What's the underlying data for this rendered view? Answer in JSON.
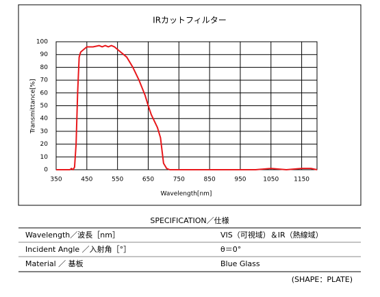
{
  "chart_data": {
    "type": "line",
    "title": "IRカットフィルター",
    "x_label": "Wavelength[nm]",
    "y_label": "Transmittance[%]",
    "x": [
      350,
      395,
      400,
      405,
      410,
      415,
      420,
      425,
      430,
      440,
      450,
      470,
      490,
      500,
      510,
      520,
      530,
      540,
      550,
      560,
      580,
      600,
      620,
      640,
      650,
      660,
      670,
      680,
      690,
      695,
      700,
      710,
      720,
      800,
      1000,
      1050,
      1100,
      1150,
      1180,
      1200
    ],
    "values": [
      0,
      0,
      1,
      0,
      2,
      20,
      60,
      88,
      92,
      94,
      96,
      96,
      97,
      96,
      97,
      96,
      97,
      96,
      94,
      92,
      88,
      80,
      70,
      58,
      50,
      43,
      38,
      33,
      25,
      15,
      5,
      1,
      0,
      0,
      0,
      1,
      0,
      1,
      1,
      0
    ],
    "color": "#e8171b",
    "xlim": [
      350,
      1200
    ],
    "xticks": [
      350,
      450,
      550,
      650,
      750,
      850,
      950,
      1050,
      1150
    ],
    "ylim": [
      0,
      100
    ],
    "yticks": [
      0,
      10,
      20,
      30,
      40,
      50,
      60,
      70,
      80,
      90,
      100
    ],
    "grid": true
  },
  "spec": {
    "title": "SPECIFICATION／仕様",
    "rows": [
      [
        "Wavelength／波長［nm］",
        "VIS（可視域）＆IR（熱線域）"
      ],
      [
        "Incident Angle ／入射角［°］",
        "θ＝0°"
      ],
      [
        "Material ／ 基板",
        "Blue Glass"
      ]
    ],
    "note": "(SHAPE：PLATE)"
  }
}
